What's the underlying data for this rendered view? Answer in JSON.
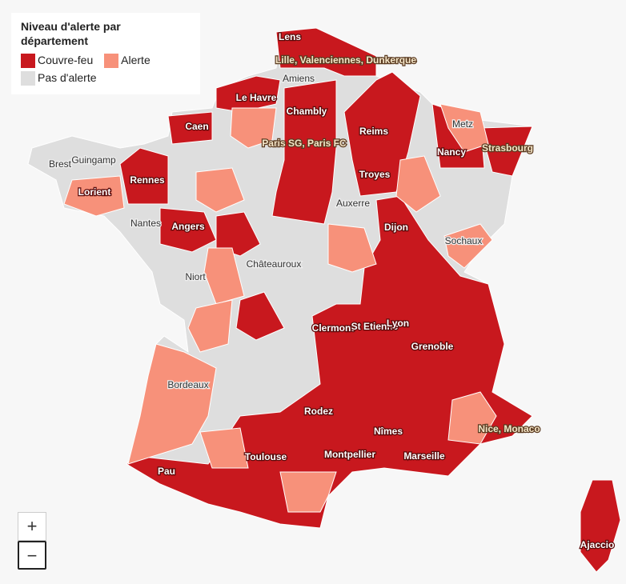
{
  "legend": {
    "title": "Niveau d'alerte par département",
    "items": [
      "Couvre-feu",
      "Alerte",
      "Pas d'alerte"
    ]
  },
  "cities": [
    "Lens",
    "Lille, Valenciennes, Dunkerque",
    "Amiens",
    "Le Havre",
    "Chambly",
    "Caen",
    "Paris SG, Paris FC",
    "Reims",
    "Metz",
    "Nancy",
    "Strasbourg",
    "Brest",
    "Guingamp",
    "Rennes",
    "Lorient",
    "Troyes",
    "Nantes",
    "Auxerre",
    "Angers",
    "Dijon",
    "Sochaux",
    "Châteauroux",
    "Niort",
    "Clermont",
    "St Etienne",
    "Lyon",
    "Grenoble",
    "Bordeaux",
    "Rodez",
    "Nice, Monaco",
    "Nîmes",
    "Toulouse",
    "Montpellier",
    "Marseille",
    "Pau",
    "Ajaccio"
  ],
  "zoom": [
    "+",
    "−"
  ]
}
